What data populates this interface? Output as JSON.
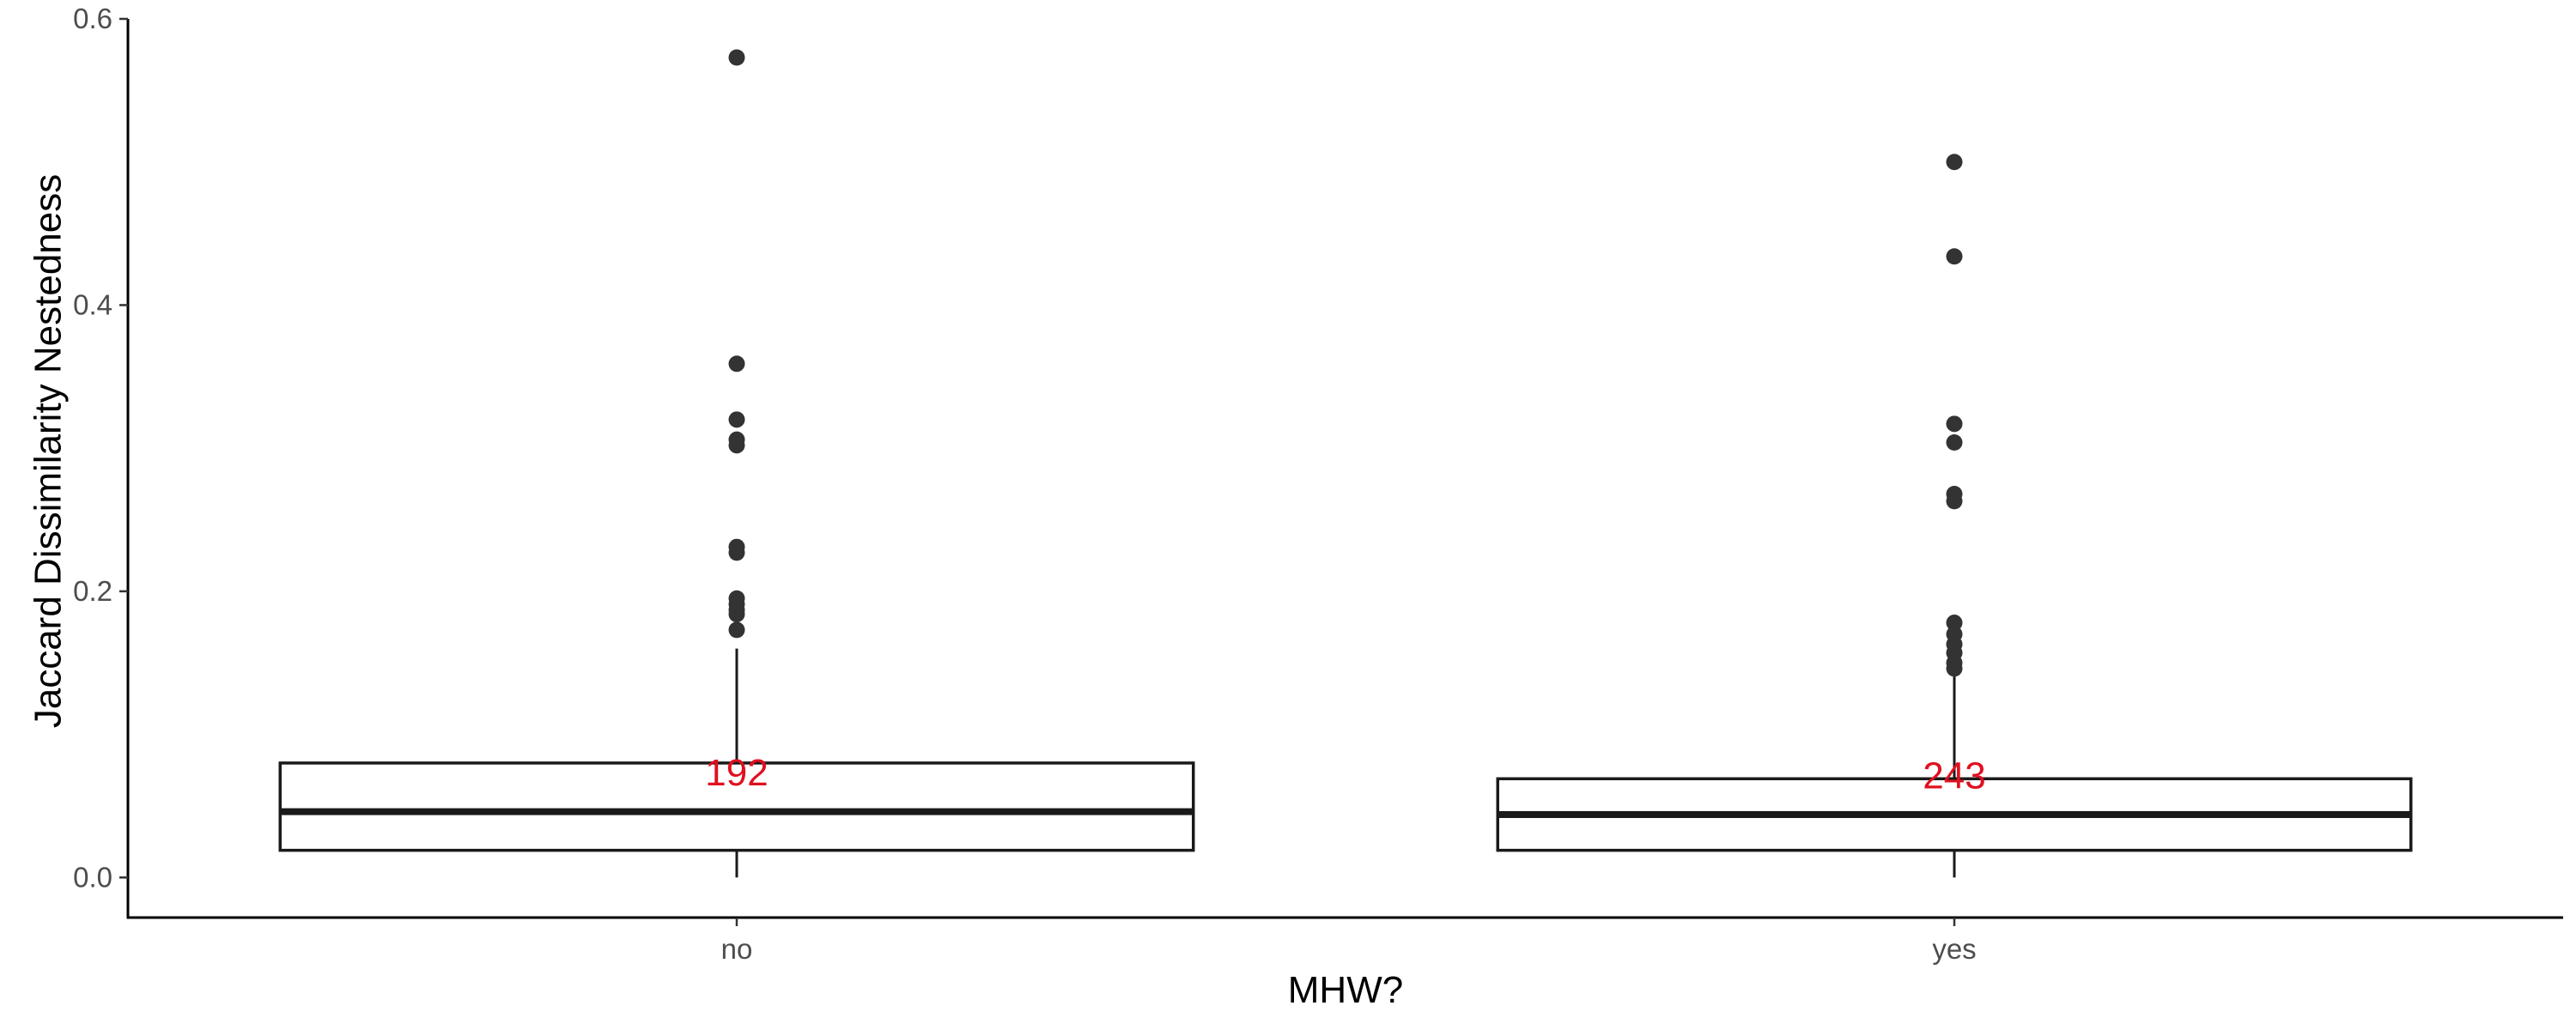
{
  "chart_data": {
    "type": "boxplot",
    "title": "",
    "xlabel": "MHW?",
    "ylabel": "Jaccard Dissimilarity Nestedness",
    "ylim": [
      -0.028,
      0.6
    ],
    "yticks": [
      "0.0",
      "0.2",
      "0.4",
      "0.6"
    ],
    "ytick_values": [
      0,
      0.2,
      0.4,
      0.6
    ],
    "grid": false,
    "legend": "none",
    "categories": [
      "no",
      "yes"
    ],
    "boxes": [
      {
        "category": "no",
        "min": 0.0,
        "q1": 0.019,
        "median": 0.046,
        "q3": 0.08,
        "whisker_high": 0.16,
        "outliers": [
          0.573,
          0.359,
          0.32,
          0.306,
          0.302,
          0.231,
          0.227,
          0.195,
          0.191,
          0.187,
          0.184,
          0.173
        ],
        "count_label": "192",
        "count_y": 0.074
      },
      {
        "category": "yes",
        "min": 0.0,
        "q1": 0.019,
        "median": 0.044,
        "q3": 0.069,
        "whisker_high": 0.143,
        "outliers": [
          0.5,
          0.434,
          0.317,
          0.304,
          0.268,
          0.263,
          0.178,
          0.17,
          0.163,
          0.157,
          0.15,
          0.146
        ],
        "count_label": "243",
        "count_y": 0.072
      }
    ],
    "colors": {
      "box_stroke": "#1a1a1a",
      "outlier": "#333333",
      "count_label": "#e0101f",
      "axis": "#000000"
    }
  }
}
